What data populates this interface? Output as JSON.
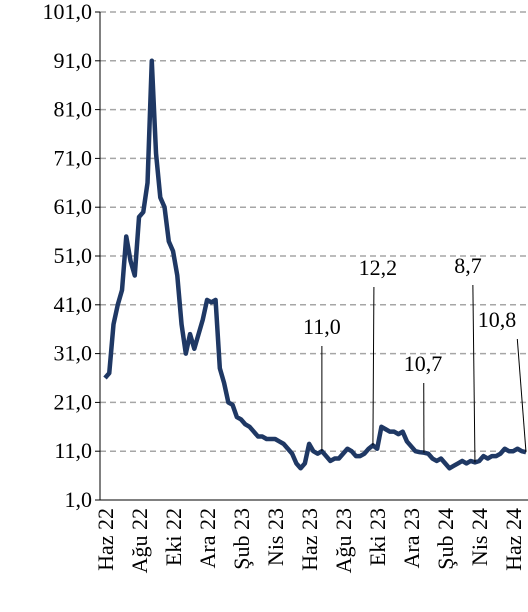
{
  "chart_data": {
    "type": "line",
    "categories": [
      "Haz 22",
      null,
      null,
      null,
      null,
      null,
      null,
      null,
      "Ağu 22",
      null,
      null,
      null,
      null,
      null,
      null,
      null,
      "Eki 22",
      null,
      null,
      null,
      null,
      null,
      null,
      null,
      "Ara 22",
      null,
      null,
      null,
      null,
      null,
      null,
      null,
      "Şub 23",
      null,
      null,
      null,
      null,
      null,
      null,
      null,
      "Nis 23",
      null,
      null,
      null,
      null,
      null,
      null,
      null,
      "Haz 23",
      null,
      null,
      null,
      null,
      null,
      null,
      null,
      "Ağu 23",
      null,
      null,
      null,
      null,
      null,
      null,
      null,
      "Eki 23",
      null,
      null,
      null,
      null,
      null,
      null,
      null,
      "Ara 23",
      null,
      null,
      null,
      null,
      null,
      null,
      null,
      "Şub 24",
      null,
      null,
      null,
      null,
      null,
      null,
      null,
      "Nis 24",
      null,
      null,
      null,
      null,
      null,
      null,
      null,
      "Haz 24",
      null,
      null,
      null
    ],
    "series": [
      {
        "color": "#1f3864",
        "values": [
          26,
          27,
          37,
          41,
          44,
          55,
          50,
          47,
          59,
          60,
          66,
          91,
          72,
          63,
          61,
          54,
          52,
          47,
          37,
          31,
          35,
          32,
          35,
          38,
          42,
          41.5,
          42,
          28,
          25,
          21,
          20.5,
          18,
          17.5,
          16.5,
          16,
          15,
          14,
          14,
          13.5,
          13.5,
          13.5,
          13,
          12.5,
          11.5,
          10.5,
          8.5,
          7.5,
          8.5,
          12.5,
          11,
          10.5,
          11,
          10,
          9,
          9.5,
          9.5,
          10.5,
          11.5,
          11,
          10,
          10,
          10.5,
          11.5,
          12.2,
          11.5,
          16,
          15.5,
          15,
          15,
          14.5,
          15,
          13,
          12,
          11,
          10.8,
          10.7,
          10.5,
          9.5,
          9,
          9.5,
          8.5,
          7.5,
          8,
          8.5,
          9,
          8.5,
          9,
          8.7,
          9,
          10,
          9.5,
          10,
          10,
          10.5,
          11.5,
          11,
          11,
          11.5,
          11,
          10.8
        ],
        "value_labels": [
          null,
          null,
          null,
          null,
          null,
          null,
          null,
          null,
          null,
          null,
          null,
          null,
          null,
          null,
          null,
          null,
          null,
          null,
          null,
          null,
          null,
          null,
          null,
          null,
          null,
          null,
          null,
          null,
          null,
          null,
          null,
          null,
          null,
          null,
          null,
          null,
          null,
          null,
          null,
          null,
          null,
          null,
          null,
          null,
          null,
          null,
          null,
          null,
          null,
          null,
          null,
          "11,0",
          null,
          null,
          null,
          null,
          null,
          null,
          null,
          null,
          null,
          null,
          null,
          "12,2",
          null,
          null,
          null,
          null,
          null,
          null,
          null,
          null,
          null,
          null,
          null,
          "10,7",
          null,
          null,
          null,
          null,
          null,
          null,
          null,
          null,
          null,
          null,
          null,
          "8,7",
          null,
          null,
          null,
          null,
          null,
          null,
          null,
          null,
          null,
          null,
          null,
          "10,8"
        ]
      }
    ],
    "ylim": [
      1,
      101
    ],
    "yticks": [
      {
        "value": 1,
        "label": "1,0"
      },
      {
        "value": 11,
        "label": "11,0"
      },
      {
        "value": 21,
        "label": "21,0"
      },
      {
        "value": 31,
        "label": "31,0"
      },
      {
        "value": 41,
        "label": "41,0"
      },
      {
        "value": 51,
        "label": "51,0"
      },
      {
        "value": 61,
        "label": "61,0"
      },
      {
        "value": 71,
        "label": "71,0"
      },
      {
        "value": 81,
        "label": "81,0"
      },
      {
        "value": 91,
        "label": "91,0"
      },
      {
        "value": 101,
        "label": "101,0"
      }
    ],
    "grid": true
  }
}
